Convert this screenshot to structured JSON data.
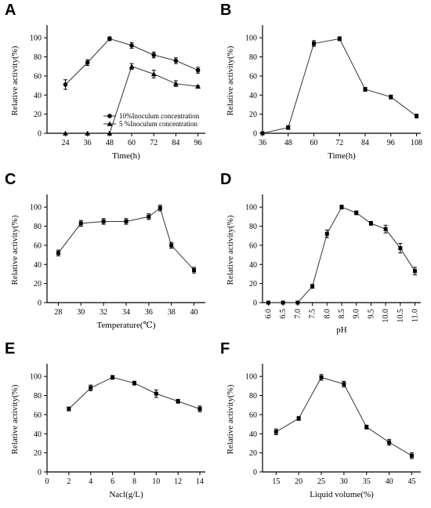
{
  "chart_data": [
    {
      "panel": "A",
      "type": "line",
      "xlabel": "Time(h)",
      "ylabel": "Relative activity(%)",
      "x_ticks": [
        24,
        36,
        48,
        60,
        72,
        84,
        96
      ],
      "xlim": [
        14,
        100
      ],
      "ylim": [
        0,
        110
      ],
      "y_ticks": [
        0,
        20,
        40,
        60,
        80,
        100
      ],
      "legend_position": "bottom-right",
      "series": [
        {
          "name": "10%Inoculum concentration",
          "marker": "circle",
          "x": [
            24,
            36,
            48,
            60,
            72,
            84,
            96
          ],
          "y": [
            51,
            74,
            99,
            92,
            82,
            76,
            66
          ],
          "err": [
            5,
            3,
            2,
            3,
            3,
            3,
            3
          ]
        },
        {
          "name": "5 %Inoculum concentration",
          "marker": "triangle",
          "x": [
            24,
            36,
            48,
            60,
            72,
            84,
            96
          ],
          "y": [
            0,
            0,
            0,
            70,
            62,
            52,
            49
          ],
          "err": [
            0,
            0,
            0,
            3,
            4,
            3,
            1
          ]
        }
      ]
    },
    {
      "panel": "B",
      "type": "line",
      "xlabel": "Time(h)",
      "ylabel": "Relative activity(%)",
      "x_ticks": [
        36,
        48,
        60,
        72,
        84,
        96,
        108
      ],
      "xlim": [
        36,
        110
      ],
      "ylim": [
        0,
        110
      ],
      "y_ticks": [
        0,
        20,
        40,
        60,
        80,
        100
      ],
      "series": [
        {
          "name": "",
          "marker": "square",
          "x": [
            36,
            48,
            60,
            72,
            84,
            96,
            108
          ],
          "y": [
            0,
            6,
            94,
            99,
            46,
            38,
            18
          ],
          "err": [
            0,
            2,
            3,
            2,
            2,
            2,
            2
          ]
        }
      ]
    },
    {
      "panel": "C",
      "type": "line",
      "xlabel": "Temperature(℃)",
      "ylabel": "Relative activity(%)",
      "x_ticks": [
        28,
        30,
        32,
        34,
        36,
        38,
        40
      ],
      "xlim": [
        27,
        41
      ],
      "ylim": [
        0,
        110
      ],
      "y_ticks": [
        0,
        20,
        40,
        60,
        80,
        100
      ],
      "series": [
        {
          "name": "",
          "marker": "square",
          "x": [
            28,
            30,
            32,
            34,
            36,
            37,
            38,
            40
          ],
          "y": [
            52,
            83,
            85,
            85,
            90,
            99,
            60,
            34
          ],
          "err": [
            3,
            3,
            3,
            3,
            3,
            3,
            3,
            3
          ]
        }
      ]
    },
    {
      "panel": "D",
      "type": "line",
      "xlabel": "pH",
      "ylabel": "Relative activity(%)",
      "x_ticks": [
        "6.0",
        "6.5",
        "7.0",
        "7.5",
        "8.0",
        "8.5",
        "9.0",
        "9.5",
        "10.0",
        "10.5",
        "11.0"
      ],
      "xlim": [
        5.8,
        11.2
      ],
      "ylim": [
        0,
        110
      ],
      "y_ticks": [
        0,
        20,
        40,
        60,
        80,
        100
      ],
      "series": [
        {
          "name": "",
          "marker": "square",
          "x": [
            6.0,
            6.5,
            7.0,
            7.5,
            8.0,
            8.5,
            9.0,
            9.5,
            10.0,
            10.5,
            11.0
          ],
          "y": [
            0,
            0,
            0,
            17,
            72,
            100,
            94,
            83,
            77,
            57,
            33
          ],
          "err": [
            0,
            0,
            0,
            2,
            4,
            2,
            2,
            2,
            4,
            5,
            4
          ]
        }
      ]
    },
    {
      "panel": "E",
      "type": "line",
      "xlabel": "Nacl(g/L)",
      "ylabel": "Relative activity(%)",
      "x_ticks": [
        0,
        2,
        4,
        6,
        8,
        10,
        12,
        14
      ],
      "xlim": [
        0,
        14.5
      ],
      "ylim": [
        0,
        110
      ],
      "y_ticks": [
        0,
        20,
        40,
        60,
        80,
        100
      ],
      "series": [
        {
          "name": "",
          "marker": "square",
          "x": [
            2,
            4,
            6,
            8,
            10,
            12,
            14
          ],
          "y": [
            66,
            88,
            99,
            93,
            82,
            74,
            66
          ],
          "err": [
            2,
            3,
            2,
            2,
            4,
            2,
            3
          ]
        }
      ]
    },
    {
      "panel": "F",
      "type": "line",
      "xlabel": "Liquid volume(%)",
      "ylabel": "Relative activity(%)",
      "x_ticks": [
        15,
        20,
        25,
        30,
        35,
        40,
        45
      ],
      "xlim": [
        12,
        47
      ],
      "ylim": [
        0,
        110
      ],
      "y_ticks": [
        0,
        20,
        40,
        60,
        80,
        100
      ],
      "series": [
        {
          "name": "",
          "marker": "square",
          "x": [
            15,
            20,
            25,
            30,
            35,
            40,
            45
          ],
          "y": [
            42,
            56,
            99,
            92,
            47,
            31,
            17
          ],
          "err": [
            3,
            2,
            3,
            3,
            2,
            3,
            3
          ]
        }
      ]
    }
  ]
}
